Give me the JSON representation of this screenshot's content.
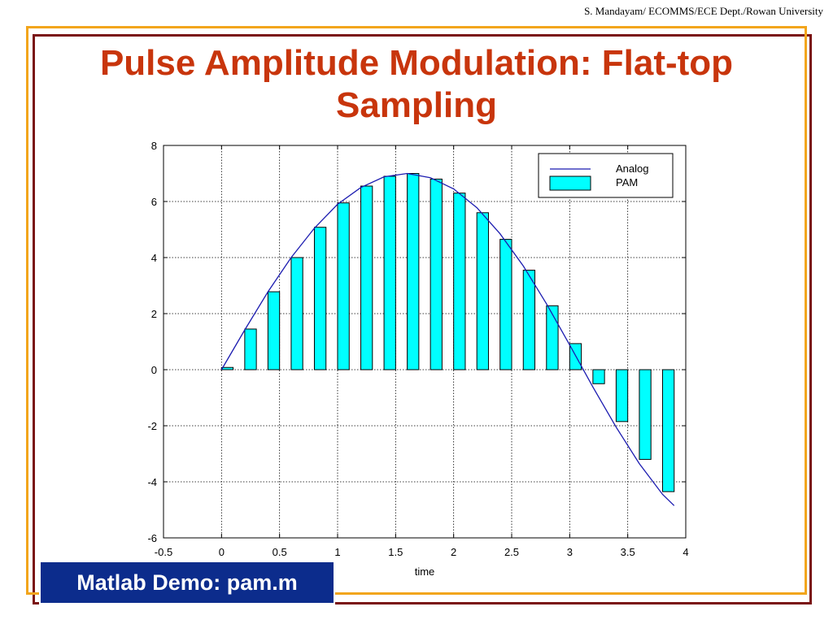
{
  "header": {
    "credit": "S. Mandayam/ ECOMMS/ECE Dept./Rowan University",
    "title_line1": "Pulse Amplitude Modulation: Flat-top",
    "title_line2": "Sampling"
  },
  "footer": {
    "demo_label": "Matlab Demo: pam.m"
  },
  "colors": {
    "title": "#c8350c",
    "frame_outer": "#7a1212",
    "frame_inner": "#f2a51c",
    "demo_bg": "#0c2c8c",
    "analog_line": "#1b1bb0",
    "pam_fill": "#00ffff"
  },
  "chart_data": {
    "type": "bar",
    "title": "",
    "xlabel": "time",
    "ylabel": "",
    "xlim": [
      -0.5,
      4
    ],
    "ylim": [
      -6,
      8
    ],
    "xticks": [
      "-0.5",
      "0",
      "0.5",
      "1",
      "1.5",
      "2",
      "2.5",
      "3",
      "3.5",
      "4"
    ],
    "xtick_values": [
      -0.5,
      0,
      0.5,
      1,
      1.5,
      2,
      2.5,
      3,
      3.5,
      4
    ],
    "yticks": [
      "-6",
      "-4",
      "-2",
      "0",
      "2",
      "4",
      "6",
      "8"
    ],
    "ytick_values": [
      -6,
      -4,
      -2,
      0,
      2,
      4,
      6,
      8
    ],
    "grid": true,
    "legend_position": "top-right",
    "pulse_width": 0.1,
    "series": [
      {
        "name": "Analog",
        "type": "line",
        "x": [
          0,
          0.2,
          0.4,
          0.6,
          0.8,
          1.0,
          1.2,
          1.4,
          1.6,
          1.8,
          2.0,
          2.2,
          2.4,
          2.6,
          2.8,
          3.0,
          3.2,
          3.4,
          3.6,
          3.8,
          3.9
        ],
        "y": [
          0,
          1.42,
          2.78,
          4.0,
          5.05,
          5.9,
          6.5,
          6.88,
          7.0,
          6.85,
          6.45,
          5.78,
          4.85,
          3.7,
          2.35,
          0.88,
          -0.62,
          -2.05,
          -3.35,
          -4.45,
          -4.85
        ]
      },
      {
        "name": "PAM",
        "type": "bar",
        "x": [
          0,
          0.2,
          0.4,
          0.6,
          0.8,
          1.0,
          1.2,
          1.4,
          1.6,
          1.8,
          2.0,
          2.2,
          2.4,
          2.6,
          2.8,
          3.0,
          3.2,
          3.4,
          3.6,
          3.8
        ],
        "values": [
          0.08,
          1.45,
          2.78,
          4.0,
          5.08,
          5.95,
          6.55,
          6.9,
          7.0,
          6.8,
          6.3,
          5.6,
          4.65,
          3.55,
          2.28,
          0.93,
          -0.5,
          -1.85,
          -3.2,
          -4.35
        ]
      }
    ]
  }
}
